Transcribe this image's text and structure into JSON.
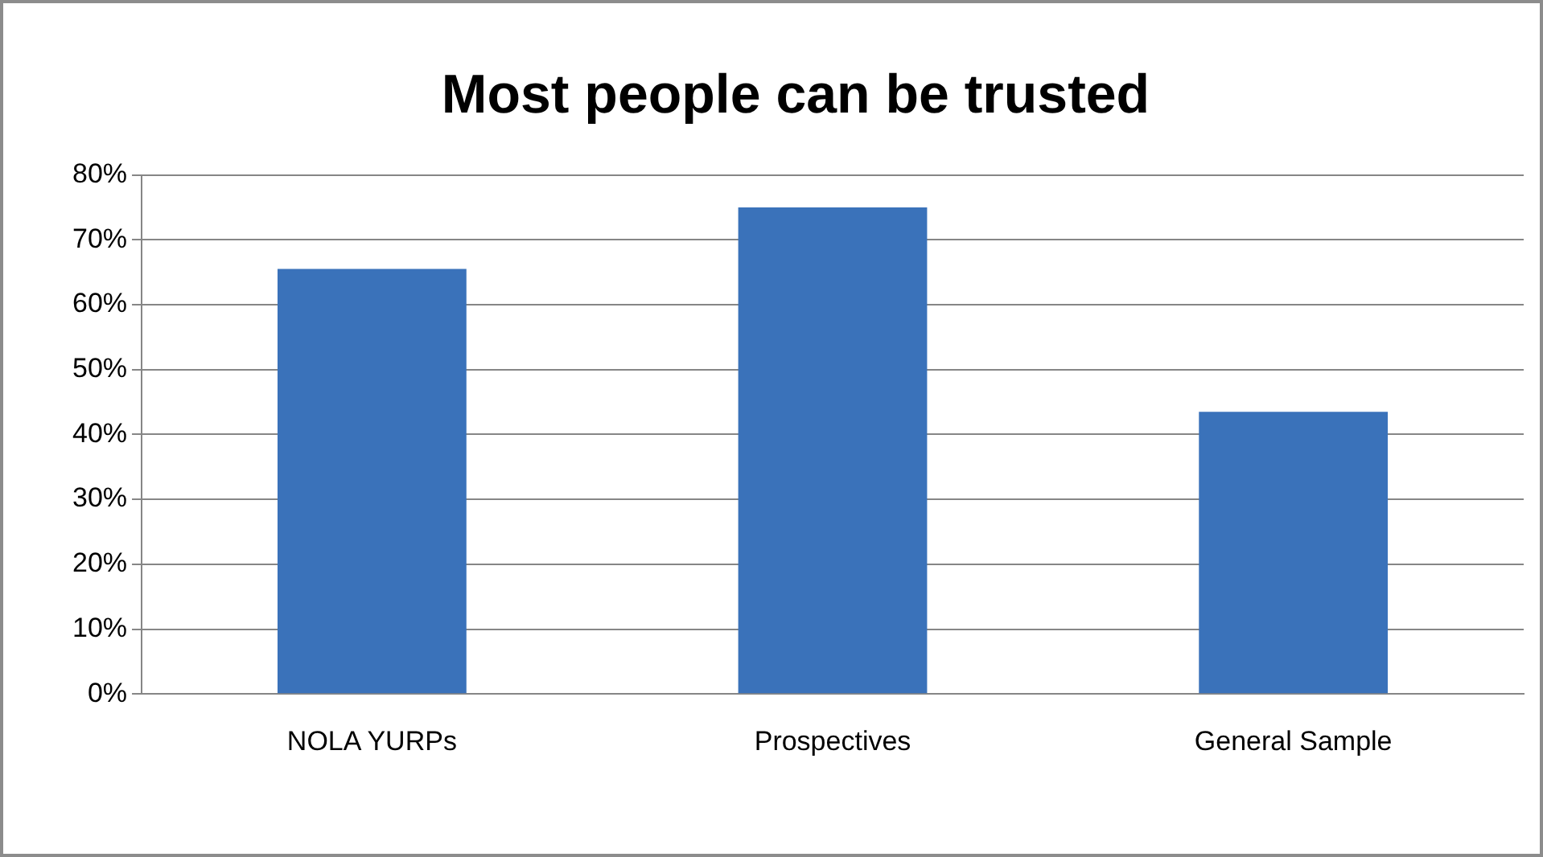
{
  "chart_data": {
    "type": "bar",
    "title": "Most people can be trusted",
    "categories": [
      "NOLA YURPs",
      "Prospectives",
      "General Sample"
    ],
    "values": [
      65.5,
      75,
      43.5
    ],
    "color": "#3a72ba",
    "ylim": [
      0,
      80
    ],
    "yticks": [
      {
        "value": 0,
        "label": "0%"
      },
      {
        "value": 10,
        "label": "10%"
      },
      {
        "value": 20,
        "label": "20%"
      },
      {
        "value": 30,
        "label": "30%"
      },
      {
        "value": 40,
        "label": "40%"
      },
      {
        "value": 50,
        "label": "50%"
      },
      {
        "value": 60,
        "label": "60%"
      },
      {
        "value": 70,
        "label": "70%"
      },
      {
        "value": 80,
        "label": "80%"
      }
    ],
    "grid": "y",
    "legend": false
  }
}
